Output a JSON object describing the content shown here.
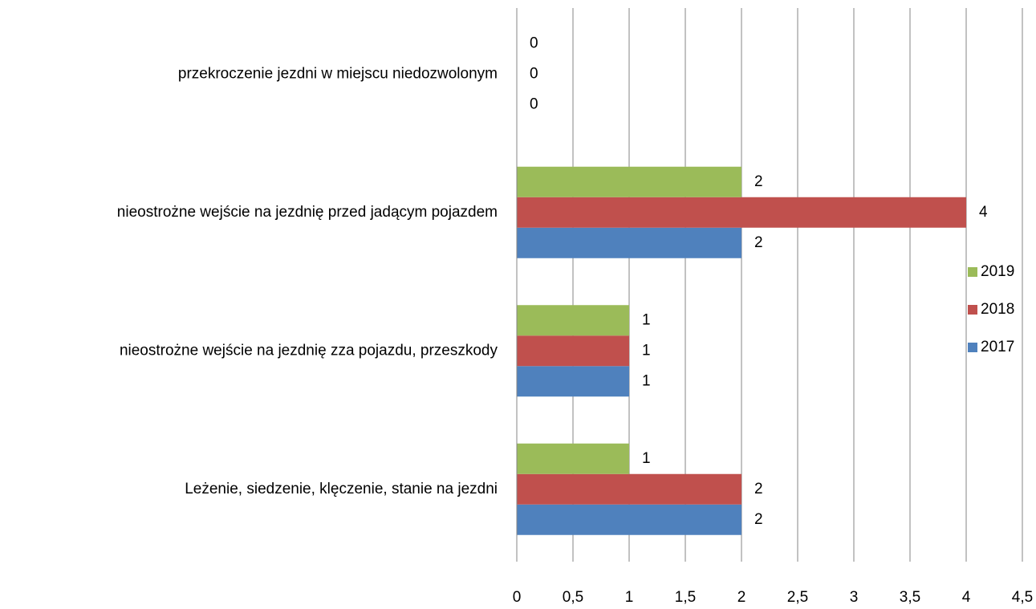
{
  "chart_data": {
    "type": "bar",
    "orientation": "horizontal",
    "categories": [
      "Leżenie, siedzenie, klęczenie, stanie na jezdni",
      "nieostrożne wejście na jezdnię zza pojazdu, przeszkody",
      "nieostrożne wejście na jezdnię przed jadącym pojazdem",
      "przekroczenie jezdni w miejscu niedozwolonym"
    ],
    "series": [
      {
        "name": "2017",
        "color": "#4f81bd",
        "values": [
          2,
          1,
          2,
          0
        ]
      },
      {
        "name": "2018",
        "color": "#c0504d",
        "values": [
          2,
          1,
          4,
          0
        ]
      },
      {
        "name": "2019",
        "color": "#9bbb59",
        "values": [
          1,
          1,
          2,
          0
        ]
      }
    ],
    "xlim": [
      0,
      4.5
    ],
    "xticks": [
      0,
      {
        "value": 0.5,
        "label": "0,5"
      },
      1,
      {
        "value": 1.5,
        "label": "1,5"
      },
      2,
      {
        "value": 2.5,
        "label": "2,5"
      },
      3,
      {
        "value": 3.5,
        "label": "3,5"
      },
      4,
      {
        "value": 4.5,
        "label": "4,5"
      }
    ],
    "grid": true,
    "legend": "right"
  }
}
